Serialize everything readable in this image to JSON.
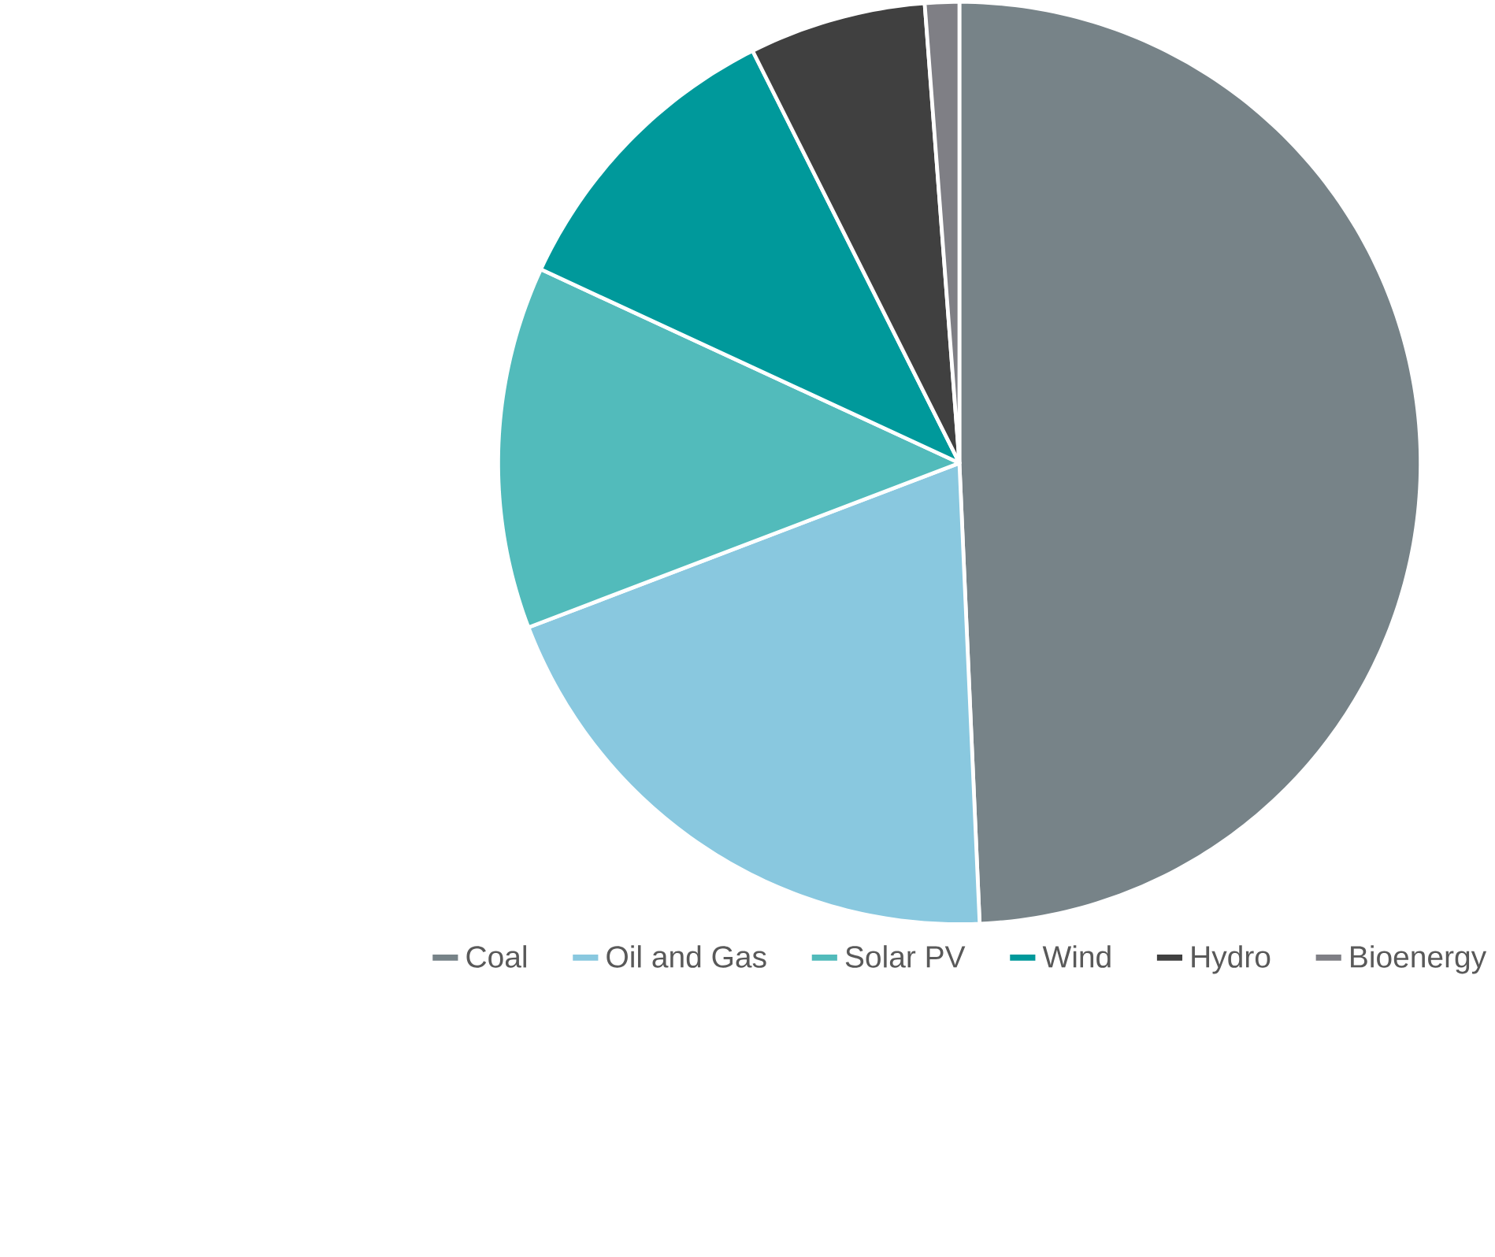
{
  "chart_data": {
    "type": "pie",
    "categories": [
      "Coal",
      "Oil and Gas",
      "Solar PV",
      "Wind",
      "Hydro",
      "Bioenergy"
    ],
    "values": [
      49.3,
      19.9,
      12.7,
      10.7,
      6.2,
      1.2
    ],
    "colors": [
      "#778388",
      "#89c8df",
      "#52bbbb",
      "#00999b",
      "#404040",
      "#7f7f85"
    ],
    "legend": "bottom"
  }
}
